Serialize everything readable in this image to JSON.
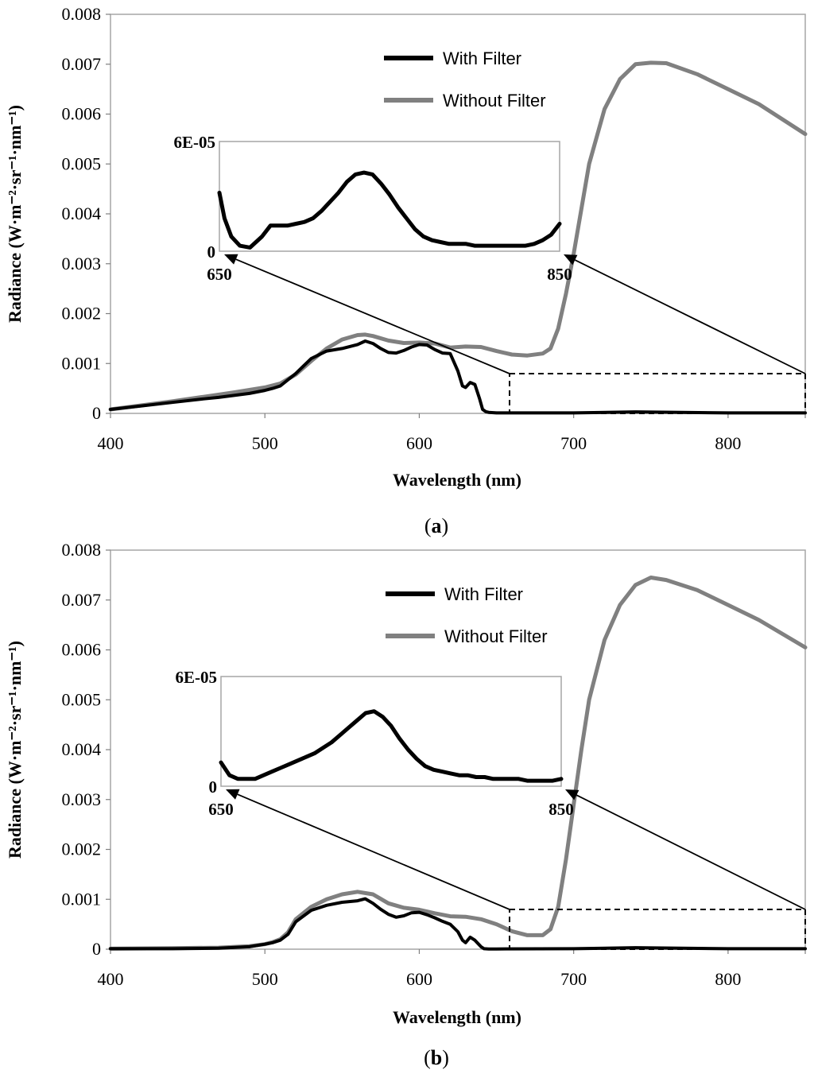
{
  "chart_data": [
    {
      "type": "line",
      "panel_label_open": "(",
      "panel_label_letter": "a",
      "panel_label_close": ")",
      "xlabel": "Wavelength (nm)",
      "ylabel": "Radiance (W·m⁻²·sr⁻¹·nm⁻¹)",
      "xlim": [
        400,
        850
      ],
      "ylim": [
        0,
        0.008
      ],
      "x_ticks": [
        "400",
        "500",
        "600",
        "700",
        "800"
      ],
      "y_ticks": [
        "0",
        "0.001",
        "0.002",
        "0.003",
        "0.004",
        "0.005",
        "0.006",
        "0.007",
        "0.008"
      ],
      "legend_position": "top-center",
      "series": [
        {
          "name": "With Filter",
          "color": "#000000",
          "x": [
            400,
            420,
            440,
            460,
            470,
            480,
            490,
            500,
            505,
            510,
            520,
            530,
            540,
            550,
            560,
            565,
            570,
            575,
            580,
            585,
            590,
            595,
            600,
            605,
            610,
            615,
            620,
            625,
            628,
            630,
            633,
            636,
            639,
            641,
            643,
            645,
            650,
            700,
            740,
            800,
            850
          ],
          "y": [
            8e-05,
            0.00015,
            0.00022,
            0.00029,
            0.00032,
            0.00036,
            0.0004,
            0.00046,
            0.0005,
            0.00055,
            0.0008,
            0.0011,
            0.00125,
            0.0013,
            0.00138,
            0.00145,
            0.0014,
            0.0013,
            0.00122,
            0.00121,
            0.00126,
            0.00133,
            0.00138,
            0.00137,
            0.00128,
            0.00121,
            0.0012,
            0.00085,
            0.00055,
            0.00052,
            0.00062,
            0.00058,
            0.0003,
            8e-05,
            3.5e-05,
            2e-05,
            1e-05,
            1e-05,
            3e-05,
            1e-05,
            1e-05
          ]
        },
        {
          "name": "Without Filter",
          "color": "#808080",
          "x": [
            400,
            440,
            480,
            500,
            510,
            520,
            530,
            540,
            550,
            560,
            565,
            570,
            580,
            590,
            600,
            610,
            620,
            630,
            640,
            650,
            660,
            670,
            680,
            685,
            690,
            695,
            700,
            705,
            710,
            720,
            730,
            740,
            750,
            760,
            780,
            800,
            820,
            850
          ],
          "y": [
            8e-05,
            0.00024,
            0.00042,
            0.00052,
            0.0006,
            0.00078,
            0.00105,
            0.0013,
            0.00148,
            0.00157,
            0.00158,
            0.00155,
            0.00146,
            0.00141,
            0.00142,
            0.0014,
            0.00132,
            0.00134,
            0.00133,
            0.00125,
            0.00118,
            0.00116,
            0.0012,
            0.0013,
            0.0017,
            0.0024,
            0.0032,
            0.0041,
            0.005,
            0.0061,
            0.0067,
            0.007,
            0.00703,
            0.00702,
            0.0068,
            0.0065,
            0.0062,
            0.0056
          ]
        }
      ],
      "inset": {
        "xlim": [
          650,
          850
        ],
        "ylim": [
          0,
          6e-05
        ],
        "x_tick_labels": [
          "650",
          "850"
        ],
        "y_tick_labels": [
          "0",
          "6E-05"
        ],
        "series": {
          "name": "With Filter",
          "x": [
            650,
            653,
            657,
            662,
            668,
            675,
            680,
            685,
            690,
            695,
            700,
            705,
            710,
            715,
            720,
            725,
            730,
            735,
            740,
            745,
            750,
            755,
            760,
            765,
            770,
            775,
            780,
            785,
            790,
            795,
            800,
            805,
            810,
            815,
            820,
            825,
            830,
            835,
            840,
            845,
            850
          ],
          "y": [
            3.2e-05,
            1.8e-05,
            8e-06,
            3e-06,
            2e-06,
            8e-06,
            1.4e-05,
            1.4e-05,
            1.4e-05,
            1.5e-05,
            1.6e-05,
            1.8e-05,
            2.2e-05,
            2.7e-05,
            3.2e-05,
            3.8e-05,
            4.2e-05,
            4.3e-05,
            4.2e-05,
            3.7e-05,
            3.1e-05,
            2.4e-05,
            1.8e-05,
            1.2e-05,
            8e-06,
            6e-06,
            5e-06,
            4e-06,
            4e-06,
            4e-06,
            3e-06,
            3e-06,
            3e-06,
            3e-06,
            3e-06,
            3e-06,
            3e-06,
            4e-06,
            6e-06,
            9e-06,
            1.5e-05
          ]
        }
      }
    },
    {
      "type": "line",
      "panel_label_open": "(",
      "panel_label_letter": "b",
      "panel_label_close": ")",
      "xlabel": "Wavelength (nm)",
      "ylabel": "Radiance (W·m⁻²·sr⁻¹·nm⁻¹)",
      "xlim": [
        400,
        850
      ],
      "ylim": [
        0,
        0.008
      ],
      "x_ticks": [
        "400",
        "500",
        "600",
        "700",
        "800"
      ],
      "y_ticks": [
        "0",
        "0.001",
        "0.002",
        "0.003",
        "0.004",
        "0.005",
        "0.006",
        "0.007",
        "0.008"
      ],
      "legend_position": "top-center",
      "series": [
        {
          "name": "With Filter",
          "color": "#000000",
          "x": [
            400,
            440,
            470,
            490,
            500,
            505,
            510,
            515,
            520,
            530,
            540,
            550,
            560,
            565,
            570,
            575,
            580,
            585,
            590,
            595,
            600,
            605,
            610,
            615,
            620,
            625,
            628,
            630,
            633,
            636,
            640,
            642,
            645,
            650,
            700,
            740,
            800,
            850
          ],
          "y": [
            1e-05,
            1e-05,
            2e-05,
            5e-05,
            0.0001,
            0.00013,
            0.00018,
            0.0003,
            0.00055,
            0.00078,
            0.00088,
            0.00094,
            0.00097,
            0.00101,
            0.00092,
            0.0008,
            0.0007,
            0.00064,
            0.00067,
            0.00073,
            0.00074,
            0.00069,
            0.00063,
            0.00056,
            0.0005,
            0.00035,
            0.00018,
            0.00013,
            0.00024,
            0.00018,
            5e-05,
            1e-05,
            5e-06,
            5e-06,
            1e-05,
            3e-05,
            1e-05,
            1e-05
          ]
        },
        {
          "name": "Without Filter",
          "color": "#808080",
          "x": [
            400,
            440,
            470,
            490,
            500,
            505,
            510,
            515,
            520,
            530,
            540,
            550,
            560,
            570,
            580,
            590,
            600,
            610,
            620,
            630,
            640,
            650,
            660,
            670,
            680,
            685,
            690,
            695,
            700,
            705,
            710,
            720,
            730,
            740,
            750,
            760,
            780,
            800,
            820,
            850
          ],
          "y": [
            1e-05,
            2e-05,
            3e-05,
            6e-05,
            0.0001,
            0.00014,
            0.0002,
            0.00034,
            0.0006,
            0.00085,
            0.001,
            0.0011,
            0.00115,
            0.0011,
            0.00092,
            0.00083,
            0.00079,
            0.00072,
            0.00066,
            0.00065,
            0.0006,
            0.0005,
            0.00036,
            0.00028,
            0.00028,
            0.0004,
            0.00085,
            0.0018,
            0.0029,
            0.004,
            0.005,
            0.0062,
            0.0069,
            0.0073,
            0.00745,
            0.0074,
            0.0072,
            0.0069,
            0.0066,
            0.00605
          ]
        }
      ],
      "inset": {
        "xlim": [
          650,
          850
        ],
        "ylim": [
          0,
          6e-05
        ],
        "x_tick_labels": [
          "650",
          "850"
        ],
        "y_tick_labels": [
          "0",
          "6E-05"
        ],
        "series": {
          "name": "With Filter",
          "x": [
            650,
            655,
            660,
            665,
            670,
            675,
            680,
            685,
            690,
            695,
            700,
            705,
            710,
            715,
            720,
            725,
            730,
            735,
            740,
            745,
            750,
            755,
            760,
            765,
            770,
            775,
            780,
            785,
            790,
            795,
            800,
            805,
            810,
            815,
            820,
            825,
            830,
            835,
            840,
            845,
            850
          ],
          "y": [
            1.3e-05,
            6e-06,
            4e-06,
            4e-06,
            4e-06,
            6e-06,
            8e-06,
            1e-05,
            1.2e-05,
            1.4e-05,
            1.6e-05,
            1.8e-05,
            2.1e-05,
            2.4e-05,
            2.8e-05,
            3.2e-05,
            3.6e-05,
            4e-05,
            4.1e-05,
            3.8e-05,
            3.3e-05,
            2.6e-05,
            2e-05,
            1.5e-05,
            1.1e-05,
            9e-06,
            8e-06,
            7e-06,
            6e-06,
            6e-06,
            5e-06,
            5e-06,
            4e-06,
            4e-06,
            4e-06,
            4e-06,
            3e-06,
            3e-06,
            3e-06,
            3e-06,
            4e-06
          ]
        }
      }
    }
  ]
}
